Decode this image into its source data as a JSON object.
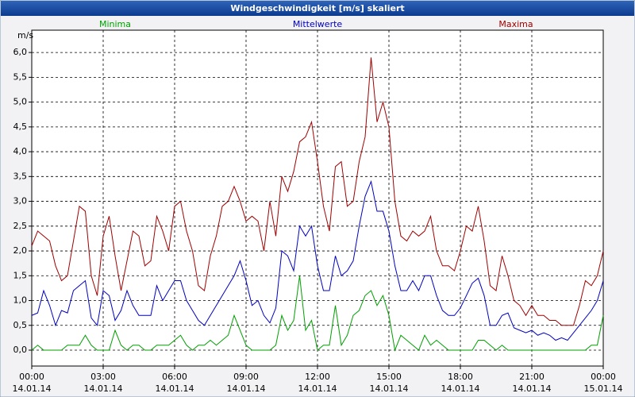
{
  "chart_data": {
    "type": "line",
    "title": "Windgeschwindigkeit [m/s] skaliert",
    "y_label": "m/s",
    "xlim": [
      0,
      24
    ],
    "ylim": [
      -0.32,
      6.45
    ],
    "grid": true,
    "xticks": [
      {
        "value": 0,
        "label": "00:00",
        "date": "14.01.14"
      },
      {
        "value": 3,
        "label": "03:00",
        "date": "14.01.14"
      },
      {
        "value": 6,
        "label": "06:00",
        "date": "14.01.14"
      },
      {
        "value": 9,
        "label": "09:00",
        "date": "14.01.14"
      },
      {
        "value": 12,
        "label": "12:00",
        "date": "14.01.14"
      },
      {
        "value": 15,
        "label": "15:00",
        "date": "14.01.14"
      },
      {
        "value": 18,
        "label": "18:00",
        "date": "14.01.14"
      },
      {
        "value": 21,
        "label": "21:00",
        "date": "14.01.14"
      },
      {
        "value": 24,
        "label": "00:00",
        "date": "15.01.14"
      }
    ],
    "yticks": [
      {
        "value": 0,
        "label": "0,0"
      },
      {
        "value": 0.5,
        "label": "0,5"
      },
      {
        "value": 1,
        "label": "1,0"
      },
      {
        "value": 1.5,
        "label": "1,5"
      },
      {
        "value": 2,
        "label": "2,0"
      },
      {
        "value": 2.5,
        "label": "2,5"
      },
      {
        "value": 3,
        "label": "3,0"
      },
      {
        "value": 3.5,
        "label": "3,5"
      },
      {
        "value": 4,
        "label": "4,0"
      },
      {
        "value": 4.5,
        "label": "4,5"
      },
      {
        "value": 5,
        "label": "5,0"
      },
      {
        "value": 5.5,
        "label": "5,5"
      },
      {
        "value": 6,
        "label": "6,0"
      }
    ],
    "x": [
      0,
      0.25,
      0.5,
      0.75,
      1,
      1.25,
      1.5,
      1.75,
      2,
      2.25,
      2.5,
      2.75,
      3,
      3.25,
      3.5,
      3.75,
      4,
      4.25,
      4.5,
      4.75,
      5,
      5.25,
      5.5,
      5.75,
      6,
      6.25,
      6.5,
      6.75,
      7,
      7.25,
      7.5,
      7.75,
      8,
      8.25,
      8.5,
      8.75,
      9,
      9.25,
      9.5,
      9.75,
      10,
      10.25,
      10.5,
      10.75,
      11,
      11.25,
      11.5,
      11.75,
      12,
      12.25,
      12.5,
      12.75,
      13,
      13.25,
      13.5,
      13.75,
      14,
      14.25,
      14.5,
      14.75,
      15,
      15.25,
      15.5,
      15.75,
      16,
      16.25,
      16.5,
      16.75,
      17,
      17.25,
      17.5,
      17.75,
      18,
      18.25,
      18.5,
      18.75,
      19,
      19.25,
      19.5,
      19.75,
      20,
      20.25,
      20.5,
      20.75,
      21,
      21.25,
      21.5,
      21.75,
      22,
      22.25,
      22.5,
      22.75,
      23,
      23.25,
      23.5,
      23.75,
      24
    ],
    "series": [
      {
        "name": "Minima",
        "color": "#00a000",
        "values": [
          0.0,
          0.1,
          0.0,
          0.0,
          0.0,
          0.0,
          0.1,
          0.1,
          0.1,
          0.3,
          0.1,
          0.0,
          0.0,
          0.0,
          0.4,
          0.1,
          0.0,
          0.1,
          0.1,
          0.0,
          0.0,
          0.1,
          0.1,
          0.1,
          0.2,
          0.3,
          0.1,
          0.0,
          0.1,
          0.1,
          0.2,
          0.1,
          0.2,
          0.3,
          0.7,
          0.4,
          0.1,
          0.0,
          0.0,
          0.0,
          0.0,
          0.1,
          0.7,
          0.4,
          0.6,
          1.5,
          0.4,
          0.6,
          0.0,
          0.1,
          0.1,
          0.9,
          0.1,
          0.3,
          0.7,
          0.8,
          1.1,
          1.2,
          0.9,
          1.1,
          0.7,
          0.0,
          0.3,
          0.2,
          0.1,
          0.0,
          0.3,
          0.1,
          0.2,
          0.1,
          0.0,
          0.0,
          0.0,
          0.0,
          0.0,
          0.2,
          0.2,
          0.1,
          0.0,
          0.1,
          0.0,
          0.0,
          0.0,
          0.0,
          0.0,
          0.0,
          0.0,
          0.0,
          0.0,
          0.0,
          0.0,
          0.0,
          0.0,
          0.0,
          0.1,
          0.1,
          0.7
        ]
      },
      {
        "name": "Mittelwerte",
        "color": "#0000c0",
        "values": [
          0.7,
          0.75,
          1.2,
          0.9,
          0.5,
          0.8,
          0.75,
          1.2,
          1.3,
          1.4,
          0.65,
          0.5,
          1.2,
          1.1,
          0.6,
          0.8,
          1.2,
          0.9,
          0.7,
          0.7,
          0.7,
          1.3,
          1.0,
          1.2,
          1.4,
          1.4,
          1.0,
          0.8,
          0.6,
          0.5,
          0.7,
          0.9,
          1.1,
          1.3,
          1.5,
          1.8,
          1.4,
          0.9,
          1.0,
          0.7,
          0.55,
          0.85,
          2.0,
          1.9,
          1.6,
          2.5,
          2.3,
          2.5,
          1.7,
          1.2,
          1.2,
          1.9,
          1.5,
          1.6,
          1.8,
          2.5,
          3.1,
          3.4,
          2.8,
          2.8,
          2.4,
          1.7,
          1.2,
          1.2,
          1.4,
          1.2,
          1.5,
          1.5,
          1.1,
          0.8,
          0.7,
          0.7,
          0.85,
          1.1,
          1.35,
          1.45,
          1.1,
          0.5,
          0.5,
          0.7,
          0.75,
          0.45,
          0.4,
          0.35,
          0.4,
          0.3,
          0.35,
          0.3,
          0.2,
          0.25,
          0.2,
          0.35,
          0.5,
          0.65,
          0.8,
          1.0,
          1.4
        ]
      },
      {
        "name": "Maxima",
        "color": "#a00000",
        "values": [
          2.1,
          2.4,
          2.3,
          2.2,
          1.7,
          1.4,
          1.5,
          2.2,
          2.9,
          2.8,
          1.5,
          1.1,
          2.3,
          2.7,
          1.9,
          1.2,
          1.8,
          2.4,
          2.3,
          1.7,
          1.8,
          2.7,
          2.4,
          2.0,
          2.9,
          3.0,
          2.4,
          2.0,
          1.3,
          1.2,
          1.9,
          2.3,
          2.9,
          3.0,
          3.3,
          3.0,
          2.6,
          2.7,
          2.6,
          2.0,
          3.0,
          2.3,
          3.5,
          3.2,
          3.6,
          4.2,
          4.3,
          4.6,
          3.8,
          2.9,
          2.4,
          3.7,
          3.8,
          2.9,
          3.0,
          3.8,
          4.3,
          5.9,
          4.6,
          5.0,
          4.5,
          3.0,
          2.3,
          2.2,
          2.4,
          2.3,
          2.4,
          2.7,
          2.0,
          1.7,
          1.7,
          1.6,
          2.0,
          2.5,
          2.4,
          2.9,
          2.2,
          1.3,
          1.2,
          1.9,
          1.5,
          1.0,
          0.9,
          0.7,
          0.9,
          0.7,
          0.7,
          0.6,
          0.6,
          0.5,
          0.5,
          0.5,
          0.9,
          1.4,
          1.3,
          1.5,
          2.0
        ]
      }
    ]
  }
}
